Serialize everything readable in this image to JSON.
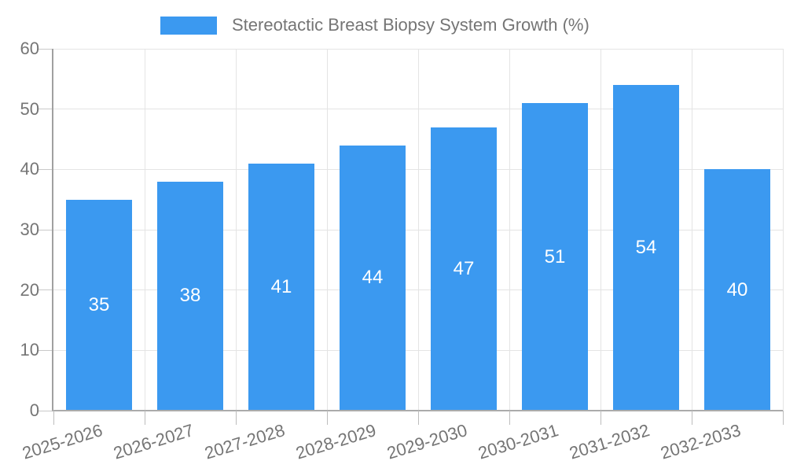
{
  "colors": {
    "bar": "#3b99f0",
    "axis_text": "#757575",
    "bar_value_text": "#ffffff",
    "grid_line": "#e4e4e4",
    "axis_line": "#a6a6a6",
    "background": "#ffffff"
  },
  "legend": {
    "label": "Stereotactic Breast Biopsy System Growth (%)"
  },
  "chart_data": {
    "type": "bar",
    "title": "Stereotactic Breast Biopsy System Growth (%)",
    "categories": [
      "2025-2026",
      "2026-2027",
      "2027-2028",
      "2028-2029",
      "2029-2030",
      "2030-2031",
      "2031-2032",
      "2032-2033"
    ],
    "series": [
      {
        "name": "Stereotactic Breast Biopsy System Growth (%)",
        "values": [
          35,
          38,
          41,
          44,
          47,
          51,
          54,
          40
        ],
        "color": "#3b99f0"
      }
    ],
    "xlabel": "",
    "ylabel": "",
    "ylim": [
      0,
      60
    ],
    "yticks": [
      0,
      10,
      20,
      30,
      40,
      50,
      60
    ],
    "grid": true,
    "legend_position": "top-center",
    "value_labels_position": "inside-center",
    "x_label_rotation_deg": -17
  }
}
